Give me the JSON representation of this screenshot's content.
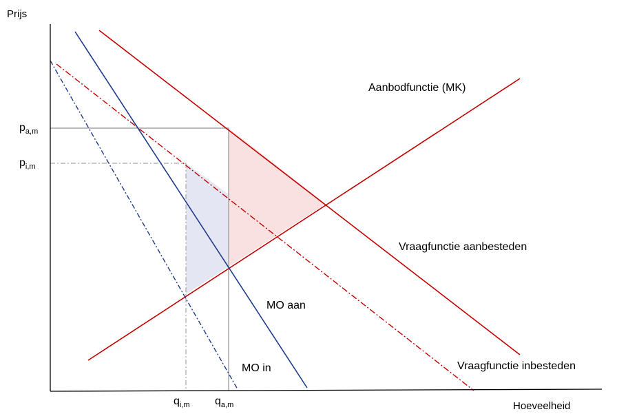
{
  "axes": {
    "y_label": "Prijs",
    "x_label": "Hoeveelheid"
  },
  "ticks": {
    "p_am": {
      "base": "p",
      "sub": "a,m"
    },
    "p_im": {
      "base": "p",
      "sub": "i,m"
    },
    "q_im": {
      "base": "q",
      "sub": "i,m"
    },
    "q_am": {
      "base": "q",
      "sub": "a,m"
    }
  },
  "curves": {
    "supply": "Aanbodfunctie (MK)",
    "demand_aanbesteden": "Vraagfunctie aanbesteden",
    "demand_inbesteden": "Vraagfunctie inbesteden",
    "mo_aan": "MO aan",
    "mo_in": "MO in"
  },
  "colors": {
    "supply_demand_red": "#c00000",
    "mo_blue": "#1f3a8a",
    "guide_gray": "#a6a6a6",
    "red_area": "#f4c7c9",
    "blue_area": "#cdd3ea"
  }
}
